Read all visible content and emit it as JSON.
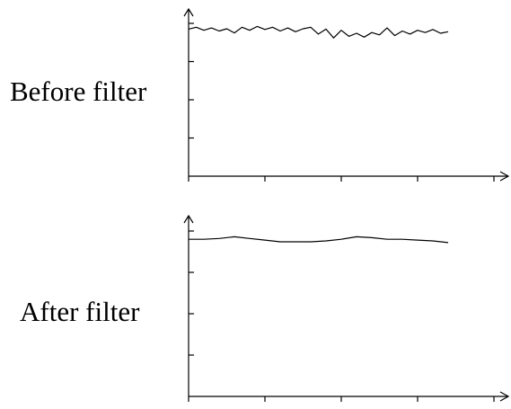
{
  "chart_data": [
    {
      "type": "line",
      "title": "Before filter",
      "xlabel": "",
      "ylabel": "",
      "grid": false,
      "xlim": [
        0,
        4
      ],
      "ylim": [
        0,
        4
      ],
      "x": [
        0,
        0.1,
        0.2,
        0.3,
        0.4,
        0.5,
        0.6,
        0.7,
        0.8,
        0.9,
        1.0,
        1.1,
        1.2,
        1.3,
        1.4,
        1.5,
        1.6,
        1.7,
        1.8,
        1.9,
        2.0,
        2.1,
        2.2,
        2.3,
        2.4,
        2.5,
        2.6,
        2.7,
        2.8,
        2.9,
        3.0,
        3.1,
        3.2,
        3.3,
        3.4
      ],
      "series": [
        {
          "values": [
            3.85,
            3.9,
            3.82,
            3.88,
            3.8,
            3.86,
            3.75,
            3.9,
            3.82,
            3.92,
            3.84,
            3.9,
            3.8,
            3.88,
            3.78,
            3.86,
            3.9,
            3.72,
            3.85,
            3.62,
            3.82,
            3.66,
            3.74,
            3.64,
            3.76,
            3.7,
            3.88,
            3.68,
            3.8,
            3.72,
            3.82,
            3.76,
            3.84,
            3.74,
            3.78
          ],
          "color": "#000000"
        }
      ]
    },
    {
      "type": "line",
      "title": "After filter",
      "xlabel": "",
      "ylabel": "",
      "grid": false,
      "xlim": [
        0,
        4
      ],
      "ylim": [
        0,
        4
      ],
      "x": [
        0,
        0.2,
        0.4,
        0.6,
        0.8,
        1.0,
        1.2,
        1.4,
        1.6,
        1.8,
        2.0,
        2.2,
        2.4,
        2.6,
        2.8,
        3.0,
        3.2,
        3.4
      ],
      "series": [
        {
          "values": [
            3.8,
            3.8,
            3.82,
            3.86,
            3.82,
            3.78,
            3.74,
            3.74,
            3.74,
            3.76,
            3.8,
            3.86,
            3.84,
            3.8,
            3.8,
            3.78,
            3.76,
            3.72
          ],
          "color": "#000000"
        }
      ]
    }
  ]
}
